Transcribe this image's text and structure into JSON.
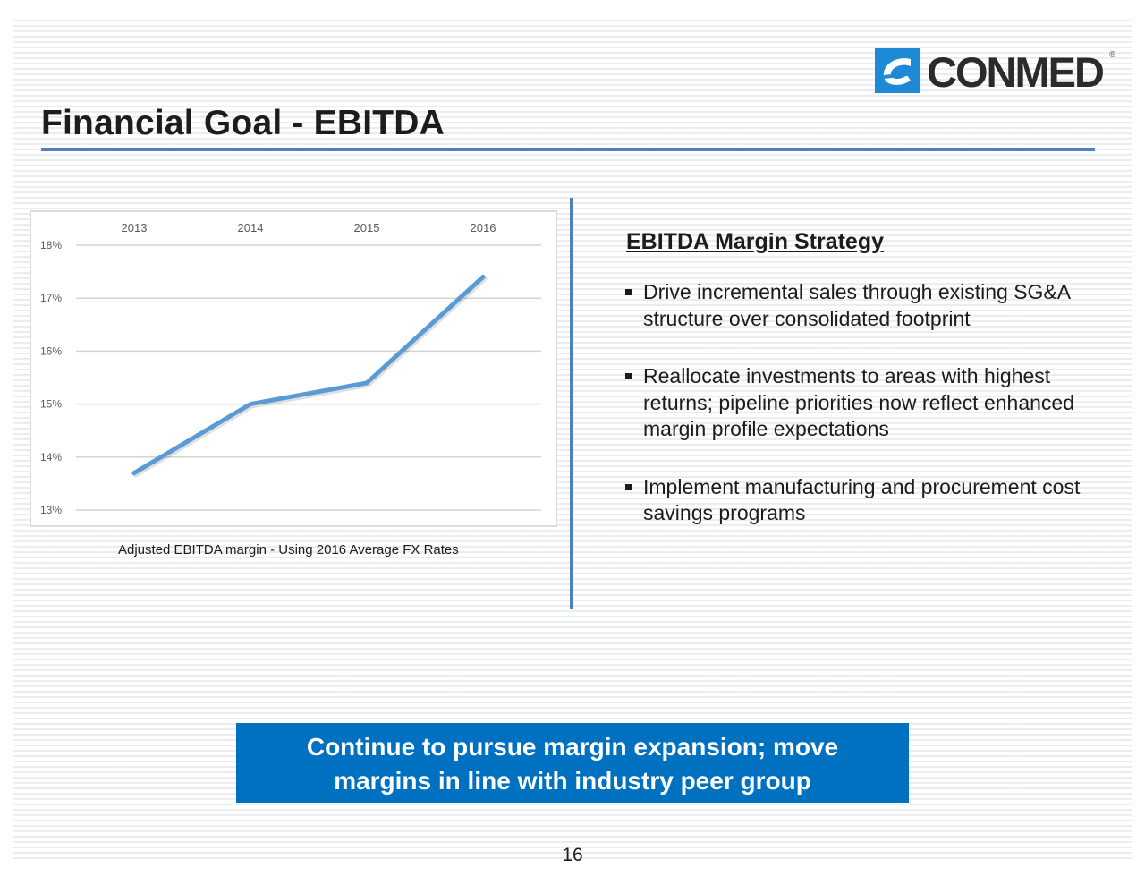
{
  "title": "Financial Goal - EBITDA",
  "logo": {
    "text": "CONMED",
    "registered": "®"
  },
  "chart_data": {
    "type": "line",
    "categories": [
      "2013",
      "2014",
      "2015",
      "2016"
    ],
    "series": [
      {
        "values": [
          13.7,
          15.0,
          15.4,
          17.4
        ]
      }
    ],
    "y_ticks": [
      "18%",
      "17%",
      "16%",
      "15%",
      "14%",
      "13%"
    ],
    "ylim": [
      13,
      18
    ],
    "grid": true,
    "x_axis_position": "top",
    "caption": "Adjusted EBITDA margin - Using 2016 Average FX Rates",
    "line_color": "#5b9bd5"
  },
  "strategy": {
    "heading": "EBITDA Margin Strategy",
    "bullets": [
      "Drive incremental sales through existing SG&A structure over consolidated footprint",
      "Reallocate investments to areas with highest returns; pipeline priorities now reflect enhanced margin profile expectations",
      "Implement manufacturing and procurement cost savings programs"
    ]
  },
  "callout": {
    "line1": "Continue to pursue margin expansion; move",
    "line2": "margins in line with industry peer group"
  },
  "page_number": "16",
  "colors": {
    "accent": "#4f81bd",
    "callout_bg": "#0070c0",
    "logo_blue": "#1e8ad6"
  }
}
